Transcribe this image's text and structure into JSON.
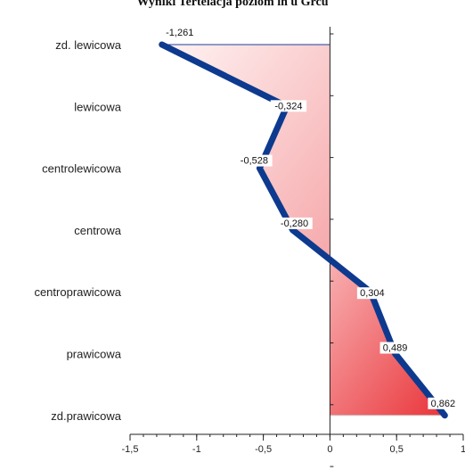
{
  "chart_data": {
    "type": "line",
    "title": "Wyniki Tertelacja poziom in u Grcu",
    "orientation": "horizontal",
    "categories": [
      "zd. lewicowa",
      "lewicowa",
      "centrolewicowa",
      "centrowa",
      "centroprawicowa",
      "prawicowa",
      "zd.prawicowa"
    ],
    "values": [
      -1.261,
      -0.324,
      -0.528,
      -0.28,
      0.304,
      0.489,
      0.862
    ],
    "value_labels": [
      "-1,261",
      "-0,324",
      "-0,528",
      "-0,280",
      "0,304",
      "0,489",
      "0,862"
    ],
    "xlim": [
      -1.5,
      1
    ],
    "xticks": [
      -1.5,
      -1,
      -0.5,
      0,
      0.5,
      1
    ],
    "xtick_labels": [
      "-1,5",
      "-1",
      "-0,5",
      "0",
      "0,5",
      "1"
    ],
    "grid": false,
    "colors": {
      "line": "#0d3a8e",
      "negative_fill_light": "#fff3f3",
      "negative_fill_dark": "#f6a9ab",
      "positive_fill_light": "#f8b0b2",
      "positive_fill_dark": "#e9353a",
      "axis": "#222222",
      "zero_line": "#1f3f9a"
    }
  }
}
